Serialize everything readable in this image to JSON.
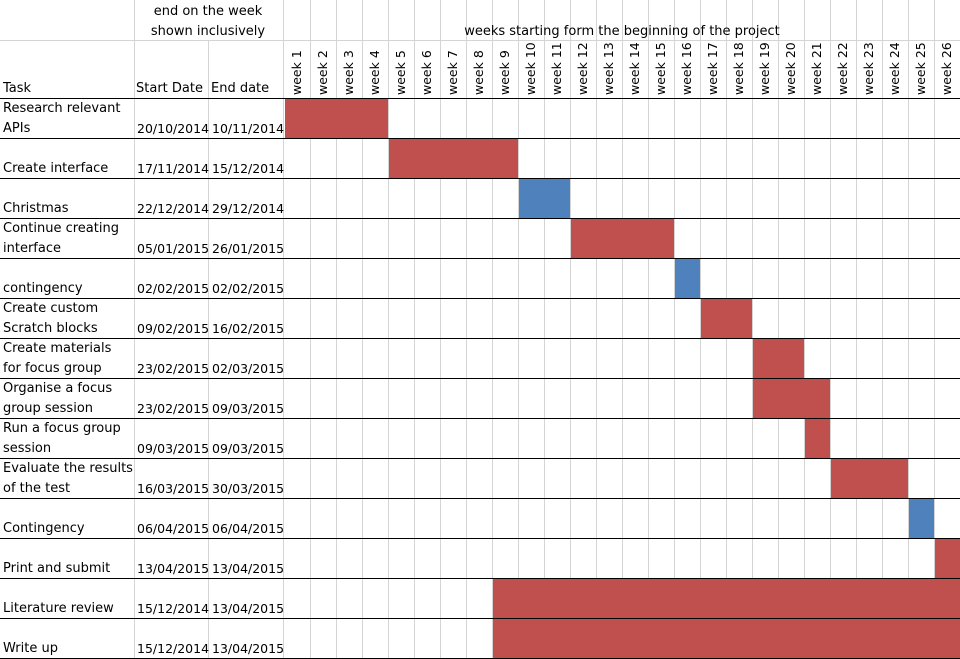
{
  "chart_data": {
    "type": "gantt",
    "header": {
      "group_label": "end on the week shown inclusively",
      "weeks_label": "weeks starting form the beginning of the project",
      "col_task": "Task",
      "col_start": "Start Date",
      "col_end": "End date"
    },
    "weeks": [
      "week 1",
      "week 2",
      "week 3",
      "week 4",
      "week 5",
      "week 6",
      "week 7",
      "week 8",
      "week 9",
      "week 10",
      "week 11",
      "week 12",
      "week 13",
      "week 14",
      "week 15",
      "week 16",
      "week 17",
      "week 18",
      "week 19",
      "week 20",
      "week 21",
      "week 22",
      "week 23",
      "week 24",
      "week 25",
      "week 26"
    ],
    "colors": {
      "task": "#c0504d",
      "break": "#4f81bd",
      "grid": "#d4d4d4",
      "border": "#000000"
    },
    "tasks": [
      {
        "name": "Research relevant APIs",
        "start": "20/10/2014",
        "end": "10/11/2014",
        "start_week": 1,
        "end_week": 4,
        "kind": "task"
      },
      {
        "name": "Create interface",
        "start": "17/11/2014",
        "end": "15/12/2014",
        "start_week": 5,
        "end_week": 9,
        "kind": "task"
      },
      {
        "name": "Christmas",
        "start": "22/12/2014",
        "end": "29/12/2014",
        "start_week": 10,
        "end_week": 11,
        "kind": "break"
      },
      {
        "name": "Continue creating interface",
        "start": "05/01/2015",
        "end": "26/01/2015",
        "start_week": 12,
        "end_week": 15,
        "kind": "task"
      },
      {
        "name": "contingency",
        "start": "02/02/2015",
        "end": "02/02/2015",
        "start_week": 16,
        "end_week": 16,
        "kind": "break"
      },
      {
        "name": "Create custom Scratch blocks",
        "start": "09/02/2015",
        "end": "16/02/2015",
        "start_week": 17,
        "end_week": 18,
        "kind": "task"
      },
      {
        "name": "Create materials for focus group",
        "start": "23/02/2015",
        "end": "02/03/2015",
        "start_week": 19,
        "end_week": 20,
        "kind": "task"
      },
      {
        "name": "Organise a focus group session",
        "start": "23/02/2015",
        "end": "09/03/2015",
        "start_week": 19,
        "end_week": 21,
        "kind": "task"
      },
      {
        "name": "Run a focus group session",
        "start": "09/03/2015",
        "end": "09/03/2015",
        "start_week": 21,
        "end_week": 21,
        "kind": "task"
      },
      {
        "name": "Evaluate the results of the test",
        "start": "16/03/2015",
        "end": "30/03/2015",
        "start_week": 22,
        "end_week": 24,
        "kind": "task"
      },
      {
        "name": "Contingency",
        "start": "06/04/2015",
        "end": "06/04/2015",
        "start_week": 25,
        "end_week": 25,
        "kind": "break"
      },
      {
        "name": "Print and submit",
        "start": "13/04/2015",
        "end": "13/04/2015",
        "start_week": 26,
        "end_week": 26,
        "kind": "task"
      },
      {
        "name": "Literature review",
        "start": "15/12/2014",
        "end": "13/04/2015",
        "start_week": 9,
        "end_week": 26,
        "kind": "task"
      },
      {
        "name": "Write up",
        "start": "15/12/2014",
        "end": "13/04/2015",
        "start_week": 9,
        "end_week": 26,
        "kind": "task"
      }
    ]
  }
}
